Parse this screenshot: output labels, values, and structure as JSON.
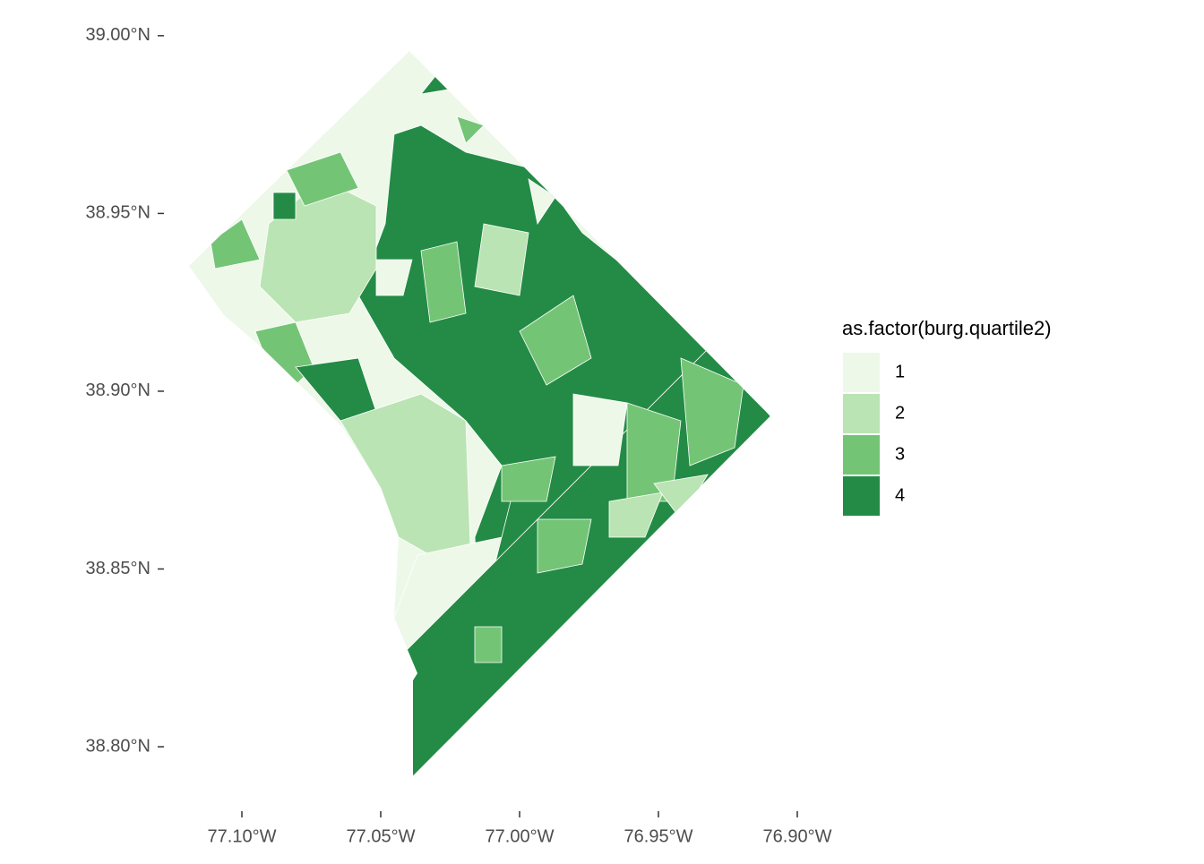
{
  "chart_data": {
    "type": "choropleth",
    "xlim": [
      -77.125,
      -76.895
    ],
    "ylim": [
      38.79,
      39.005
    ],
    "xticks": [
      {
        "value": -77.1,
        "label": "77.10°W"
      },
      {
        "value": -77.05,
        "label": "77.05°W"
      },
      {
        "value": -77.0,
        "label": "77.00°W"
      },
      {
        "value": -76.95,
        "label": "76.95°W"
      },
      {
        "value": -76.9,
        "label": "76.90°W"
      }
    ],
    "yticks": [
      {
        "value": 38.8,
        "label": "38.80°N"
      },
      {
        "value": 38.85,
        "label": "38.85°N"
      },
      {
        "value": 38.9,
        "label": "38.90°N"
      },
      {
        "value": 38.95,
        "label": "38.95°N"
      },
      {
        "value": 39.0,
        "label": "39.00°N"
      }
    ],
    "legend": {
      "title": "as.factor(burg.quartile2)",
      "items": [
        {
          "label": "1",
          "color": "#edf8e9"
        },
        {
          "label": "2",
          "color": "#bae4b3"
        },
        {
          "label": "3",
          "color": "#74c476"
        },
        {
          "label": "4",
          "color": "#238b45"
        }
      ]
    }
  }
}
